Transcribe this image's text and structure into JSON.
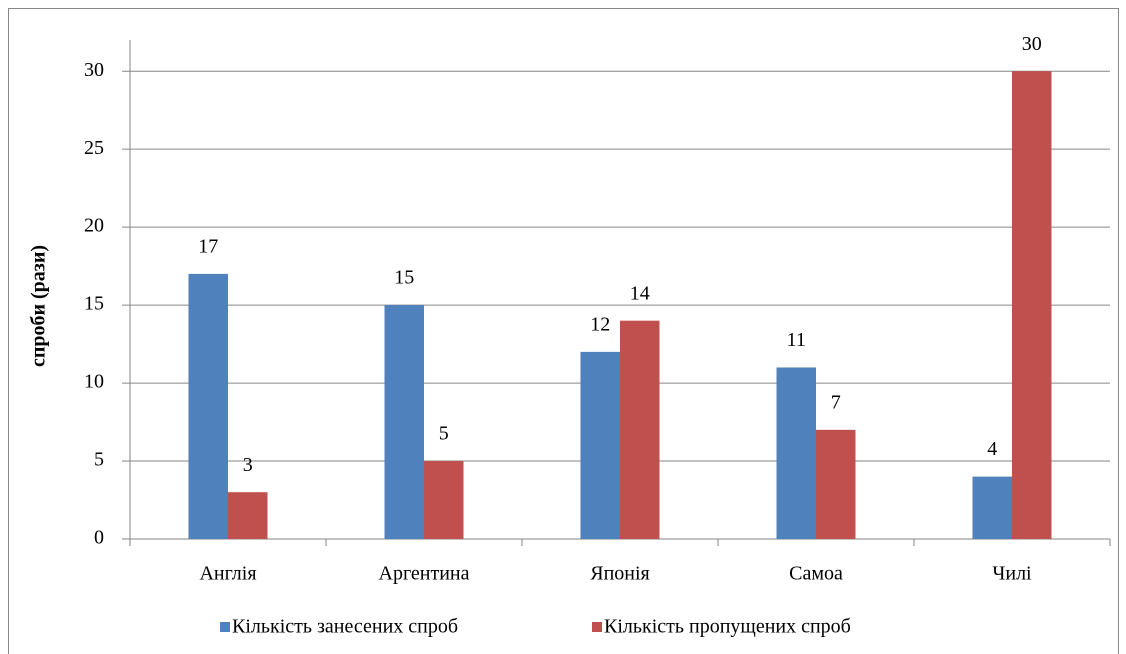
{
  "chart_data": {
    "type": "bar",
    "y_label": "спроби (рази)",
    "categories": [
      "Англія",
      "Аргентина",
      "Японія",
      "Самоа",
      "Чилі"
    ],
    "series": [
      {
        "name": "Кількість занесених спроб",
        "color": "#4f81bd",
        "values": [
          17,
          15,
          12,
          11,
          4
        ]
      },
      {
        "name": "Кількість пропущених спроб",
        "color": "#c0504d",
        "values": [
          3,
          5,
          14,
          7,
          30
        ]
      }
    ],
    "ylim": [
      0,
      32
    ],
    "yticks": [
      0,
      5,
      10,
      15,
      20,
      25,
      30
    ],
    "grid": true,
    "legend": "bottom"
  }
}
